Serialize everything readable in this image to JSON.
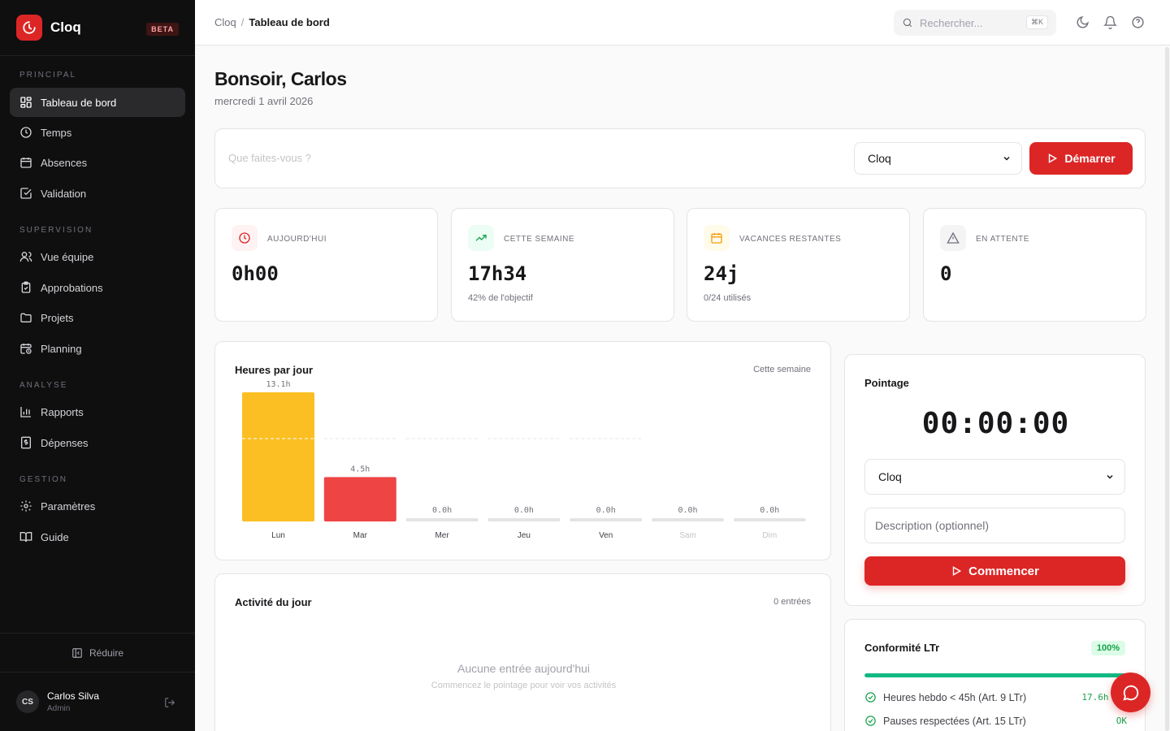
{
  "app": {
    "name": "Cloq",
    "badge": "BETA"
  },
  "sidebar": {
    "sections": [
      "PRINCIPAL",
      "SUPERVISION",
      "ANALYSE",
      "GESTION"
    ],
    "items": [
      {
        "label": "Tableau de bord",
        "icon": "dashboard-icon"
      },
      {
        "label": "Temps",
        "icon": "clock-icon"
      },
      {
        "label": "Absences",
        "icon": "calendar-icon"
      },
      {
        "label": "Validation",
        "icon": "check-square-icon"
      },
      {
        "label": "Vue équipe",
        "icon": "users-icon"
      },
      {
        "label": "Approbations",
        "icon": "clipboard-check-icon"
      },
      {
        "label": "Projets",
        "icon": "folder-icon"
      },
      {
        "label": "Planning",
        "icon": "calendar-clock-icon"
      },
      {
        "label": "Rapports",
        "icon": "bar-chart-icon"
      },
      {
        "label": "Dépenses",
        "icon": "receipt-icon"
      },
      {
        "label": "Paramètres",
        "icon": "gear-icon"
      },
      {
        "label": "Guide",
        "icon": "book-icon"
      }
    ],
    "collapse_label": "Réduire",
    "user": {
      "initials": "CS",
      "name": "Carlos Silva",
      "role": "Admin"
    }
  },
  "topbar": {
    "breadcrumb_root": "Cloq",
    "breadcrumb_current": "Tableau de bord",
    "search_placeholder": "Rechercher...",
    "search_shortcut": "⌘K"
  },
  "greeting": {
    "title": "Bonsoir, Carlos",
    "date": "mercredi 1 avril 2026"
  },
  "quick_start": {
    "placeholder": "Que faites-vous ?",
    "project": "Cloq",
    "button": "Démarrer"
  },
  "stats": [
    {
      "label": "AUJOURD'HUI",
      "value": "0h00",
      "note": "",
      "color": "#dc2626"
    },
    {
      "label": "CETTE SEMAINE",
      "value": "17h34",
      "note": "42% de l'objectif",
      "color": "#16a34a"
    },
    {
      "label": "VACANCES RESTANTES",
      "value": "24j",
      "note": "0/24 utilisés",
      "color": "#f59e0b"
    },
    {
      "label": "EN ATTENTE",
      "value": "0",
      "note": "",
      "color": "#71717a"
    }
  ],
  "chart": {
    "title": "Heures par jour",
    "period": "Cette semaine"
  },
  "chart_data": {
    "type": "bar",
    "categories": [
      "Lun",
      "Mar",
      "Mer",
      "Jeu",
      "Ven",
      "Sam",
      "Dim"
    ],
    "values": [
      13.1,
      4.5,
      0.0,
      0.0,
      0.0,
      0.0,
      0.0
    ],
    "value_labels": [
      "13.1h",
      "4.5h",
      "0.0h",
      "0.0h",
      "0.0h",
      "0.0h",
      "0.0h"
    ],
    "colors": [
      "#fbbf24",
      "#ef4444",
      "#e4e4e7",
      "#e4e4e7",
      "#e4e4e7",
      "#e4e4e7",
      "#e4e4e7"
    ],
    "target_line": 8.4,
    "ymax": 13.1
  },
  "activity": {
    "title": "Activité du jour",
    "count": "0 entrées",
    "empty_title": "Aucune entrée aujourd'hui",
    "empty_sub": "Commencez le pointage pour voir vos activités"
  },
  "pointage": {
    "title": "Pointage",
    "timer": "00:00:00",
    "project": "Cloq",
    "description_placeholder": "Description (optionnel)",
    "button": "Commencer"
  },
  "compliance": {
    "title": "Conformité LTr",
    "percent_label": "100%",
    "progress": 1.0,
    "rules": [
      {
        "label": "Heures hebdo < 45h (Art. 9 LTr)",
        "value": "17.6h / 4"
      },
      {
        "label": "Pauses respectées (Art. 15 LTr)",
        "value": "OK"
      }
    ]
  }
}
